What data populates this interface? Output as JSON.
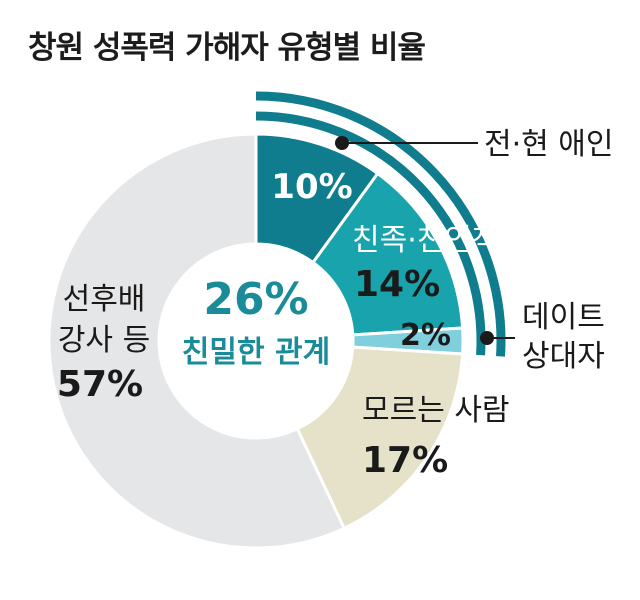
{
  "title": "창원 성폭력 가해자 유형별 비율",
  "center": {
    "value": "26%",
    "label": "친밀한 관계",
    "color": "#1a8b99"
  },
  "chart_data": {
    "type": "pie",
    "variant": "donut",
    "title": "창원 성폭력 가해자 유형별 비율",
    "unit": "%",
    "slices": [
      {
        "label": "전·현 애인",
        "value": 10,
        "display": "10%",
        "color": "#0f7d8e"
      },
      {
        "label": "친족·친인척",
        "value": 14,
        "display": "14%",
        "color": "#18a3ad"
      },
      {
        "label": "데이트 상대자",
        "value": 2,
        "display": "2%",
        "color": "#7fd0dc"
      },
      {
        "label": "모르는 사람",
        "value": 17,
        "display": "17%",
        "color": "#e6e2c9"
      },
      {
        "label": "선후배 강사 등",
        "value": 57,
        "display": "57%",
        "color": "#e5e6e8"
      }
    ],
    "group_arc": {
      "slices": [
        "전·현 애인",
        "친족·친인척",
        "데이트 상대자"
      ],
      "color": "#0f7d8e"
    }
  }
}
